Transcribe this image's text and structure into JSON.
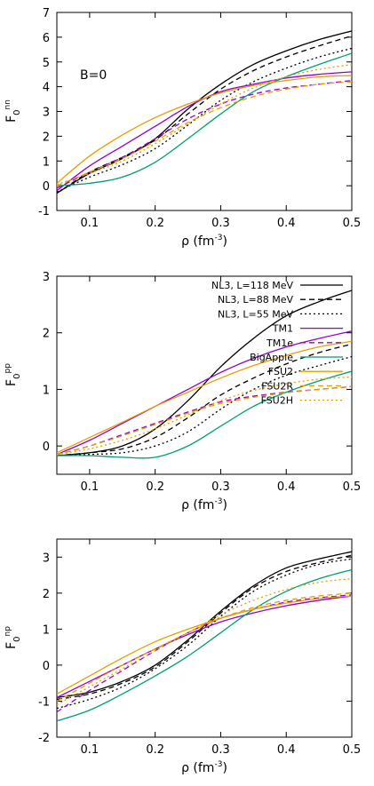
{
  "chart_data": [
    {
      "type": "line",
      "ylabel": {
        "base": "F",
        "sub": "0",
        "sup": "nn"
      },
      "xlabel": {
        "base": "ρ (fm",
        "sup": "-3",
        "tail": ")"
      },
      "xlim": [
        0.05,
        0.5
      ],
      "ylim": [
        -1,
        7
      ],
      "xticks": [
        "0.1",
        "0.2",
        "0.3",
        "0.4",
        "0.5"
      ],
      "xtick_values": [
        0.1,
        0.2,
        0.3,
        0.4,
        0.5
      ],
      "yticks": [
        "-1",
        "0",
        "1",
        "2",
        "3",
        "4",
        "5",
        "6",
        "7"
      ],
      "ytick_values": [
        -1,
        0,
        1,
        2,
        3,
        4,
        5,
        6,
        7
      ],
      "annotation": "B=0",
      "grid": false,
      "x": [
        0.05,
        0.1,
        0.15,
        0.2,
        0.25,
        0.3,
        0.35,
        0.4,
        0.45,
        0.5
      ],
      "series": [
        {
          "name": "NL3, L=118 MeV",
          "color": "#000000",
          "dash": "solid",
          "values": [
            -0.3,
            0.5,
            1.1,
            1.9,
            3.1,
            4.1,
            4.9,
            5.45,
            5.9,
            6.25
          ]
        },
        {
          "name": "NL3, L=88 MeV",
          "color": "#000000",
          "dash": "dashed",
          "values": [
            -0.3,
            0.55,
            1.15,
            1.85,
            2.9,
            3.9,
            4.65,
            5.2,
            5.65,
            6.05
          ]
        },
        {
          "name": "NL3, L=55 MeV",
          "color": "#000000",
          "dash": "dotted",
          "values": [
            -0.25,
            0.35,
            0.85,
            1.5,
            2.45,
            3.45,
            4.2,
            4.75,
            5.2,
            5.55
          ]
        },
        {
          "name": "TM1",
          "color": "#9400d3",
          "dash": "solid",
          "values": [
            -0.2,
            0.8,
            1.6,
            2.4,
            3.2,
            3.8,
            4.1,
            4.35,
            4.5,
            4.6
          ]
        },
        {
          "name": "TM1e",
          "color": "#9400d3",
          "dash": "dashed",
          "values": [
            -0.1,
            0.55,
            1.15,
            1.9,
            2.7,
            3.3,
            3.7,
            3.95,
            4.1,
            4.25
          ]
        },
        {
          "name": "BigApple",
          "color": "#009e73",
          "dash": "solid",
          "values": [
            0.0,
            0.1,
            0.35,
            0.95,
            1.9,
            2.9,
            3.8,
            4.4,
            4.9,
            5.35
          ]
        },
        {
          "name": "FSU2",
          "color": "#e69f00",
          "dash": "solid",
          "values": [
            0.1,
            1.2,
            2.05,
            2.75,
            3.3,
            3.75,
            4.05,
            4.25,
            4.4,
            4.45
          ]
        },
        {
          "name": "FSU2R",
          "color": "#e69f00",
          "dash": "dashed",
          "values": [
            0.0,
            0.55,
            1.1,
            1.8,
            2.55,
            3.15,
            3.6,
            3.9,
            4.1,
            4.2
          ]
        },
        {
          "name": "FSU2H",
          "color": "#e69f00",
          "dash": "dotted",
          "values": [
            0.05,
            0.5,
            1.0,
            1.7,
            2.5,
            3.3,
            3.95,
            4.4,
            4.7,
            4.9
          ]
        }
      ]
    },
    {
      "type": "line",
      "ylabel": {
        "base": "F",
        "sub": "0",
        "sup": "pp"
      },
      "xlabel": {
        "base": "ρ (fm",
        "sup": "-3",
        "tail": ")"
      },
      "xlim": [
        0.05,
        0.5
      ],
      "ylim": [
        -0.5,
        3
      ],
      "xticks": [
        "0.1",
        "0.2",
        "0.3",
        "0.4",
        "0.5"
      ],
      "xtick_values": [
        0.1,
        0.2,
        0.3,
        0.4,
        0.5
      ],
      "yticks": [
        "0",
        "1",
        "2",
        "3"
      ],
      "ytick_values": [
        0,
        1,
        2,
        3
      ],
      "legend": "top-left",
      "grid": false,
      "x": [
        0.05,
        0.1,
        0.15,
        0.2,
        0.25,
        0.3,
        0.35,
        0.4,
        0.45,
        0.5
      ],
      "series": [
        {
          "name": "NL3, L=118 MeV",
          "color": "#000000",
          "dash": "solid",
          "values": [
            -0.17,
            -0.12,
            0.0,
            0.3,
            0.8,
            1.4,
            1.9,
            2.3,
            2.55,
            2.75
          ]
        },
        {
          "name": "NL3, L=88 MeV",
          "color": "#000000",
          "dash": "dashed",
          "values": [
            -0.17,
            -0.12,
            -0.05,
            0.15,
            0.5,
            0.9,
            1.2,
            1.45,
            1.65,
            1.8
          ]
        },
        {
          "name": "NL3, L=55 MeV",
          "color": "#000000",
          "dash": "dotted",
          "values": [
            -0.17,
            -0.15,
            -0.12,
            0.0,
            0.25,
            0.65,
            1.0,
            1.25,
            1.42,
            1.58
          ]
        },
        {
          "name": "TM1",
          "color": "#9400d3",
          "dash": "solid",
          "values": [
            -0.15,
            0.1,
            0.4,
            0.7,
            1.0,
            1.3,
            1.55,
            1.75,
            1.9,
            2.03
          ]
        },
        {
          "name": "TM1e",
          "color": "#9400d3",
          "dash": "dashed",
          "values": [
            -0.15,
            0.0,
            0.2,
            0.4,
            0.6,
            0.78,
            0.88,
            0.95,
            1.0,
            1.05
          ]
        },
        {
          "name": "BigApple",
          "color": "#009e73",
          "dash": "solid",
          "values": [
            -0.17,
            -0.17,
            -0.2,
            -0.2,
            0.0,
            0.35,
            0.7,
            0.95,
            1.15,
            1.32
          ]
        },
        {
          "name": "FSU2",
          "color": "#e69f00",
          "dash": "solid",
          "values": [
            -0.12,
            0.15,
            0.42,
            0.7,
            0.95,
            1.2,
            1.42,
            1.6,
            1.75,
            1.85
          ]
        },
        {
          "name": "FSU2R",
          "color": "#e69f00",
          "dash": "dashed",
          "values": [
            -0.15,
            0.0,
            0.18,
            0.38,
            0.58,
            0.75,
            0.86,
            0.94,
            1.0,
            1.05
          ]
        },
        {
          "name": "FSU2H",
          "color": "#e69f00",
          "dash": "dotted",
          "values": [
            -0.15,
            -0.05,
            0.1,
            0.3,
            0.55,
            0.8,
            0.98,
            1.1,
            1.18,
            1.22
          ]
        }
      ]
    },
    {
      "type": "line",
      "ylabel": {
        "base": "F",
        "sub": "0",
        "sup": "np"
      },
      "xlabel": {
        "base": "ρ (fm",
        "sup": "-3",
        "tail": ")"
      },
      "xlim": [
        0.05,
        0.5
      ],
      "ylim": [
        -2,
        3.5
      ],
      "xticks": [
        "0.1",
        "0.2",
        "0.3",
        "0.4",
        "0.5"
      ],
      "xtick_values": [
        0.1,
        0.2,
        0.3,
        0.4,
        0.5
      ],
      "yticks": [
        "-2",
        "-1",
        "0",
        "1",
        "2",
        "3"
      ],
      "ytick_values": [
        -2,
        -1,
        0,
        1,
        2,
        3
      ],
      "grid": false,
      "x": [
        0.05,
        0.1,
        0.15,
        0.2,
        0.25,
        0.3,
        0.35,
        0.4,
        0.45,
        0.5
      ],
      "series": [
        {
          "name": "NL3, L=118 MeV",
          "color": "#000000",
          "dash": "solid",
          "values": [
            -0.9,
            -0.75,
            -0.45,
            0.0,
            0.7,
            1.5,
            2.2,
            2.7,
            2.95,
            3.15
          ]
        },
        {
          "name": "NL3, L=88 MeV",
          "color": "#000000",
          "dash": "dashed",
          "values": [
            -0.95,
            -0.8,
            -0.5,
            -0.05,
            0.65,
            1.45,
            2.15,
            2.6,
            2.85,
            3.05
          ]
        },
        {
          "name": "NL3, L=55 MeV",
          "color": "#000000",
          "dash": "dotted",
          "values": [
            -1.2,
            -0.95,
            -0.6,
            -0.1,
            0.55,
            1.35,
            2.05,
            2.5,
            2.8,
            2.95
          ]
        },
        {
          "name": "TM1",
          "color": "#9400d3",
          "dash": "solid",
          "values": [
            -0.9,
            -0.45,
            0.0,
            0.45,
            0.85,
            1.2,
            1.45,
            1.65,
            1.8,
            1.92
          ]
        },
        {
          "name": "TM1e",
          "color": "#9400d3",
          "dash": "dashed",
          "values": [
            -1.3,
            -0.7,
            -0.15,
            0.4,
            0.9,
            1.3,
            1.55,
            1.75,
            1.87,
            1.95
          ]
        },
        {
          "name": "BigApple",
          "color": "#009e73",
          "dash": "solid",
          "values": [
            -1.55,
            -1.25,
            -0.8,
            -0.3,
            0.25,
            0.9,
            1.55,
            2.05,
            2.4,
            2.65
          ]
        },
        {
          "name": "FSU2",
          "color": "#e69f00",
          "dash": "solid",
          "values": [
            -0.8,
            -0.3,
            0.2,
            0.65,
            1.0,
            1.3,
            1.55,
            1.72,
            1.85,
            1.92
          ]
        },
        {
          "name": "FSU2R",
          "color": "#e69f00",
          "dash": "dashed",
          "values": [
            -1.0,
            -0.5,
            0.0,
            0.45,
            0.9,
            1.3,
            1.6,
            1.8,
            1.92,
            2.0
          ]
        },
        {
          "name": "FSU2H",
          "color": "#e69f00",
          "dash": "dotted",
          "values": [
            -1.1,
            -0.6,
            -0.1,
            0.4,
            0.9,
            1.4,
            1.8,
            2.1,
            2.3,
            2.4
          ]
        }
      ]
    }
  ]
}
